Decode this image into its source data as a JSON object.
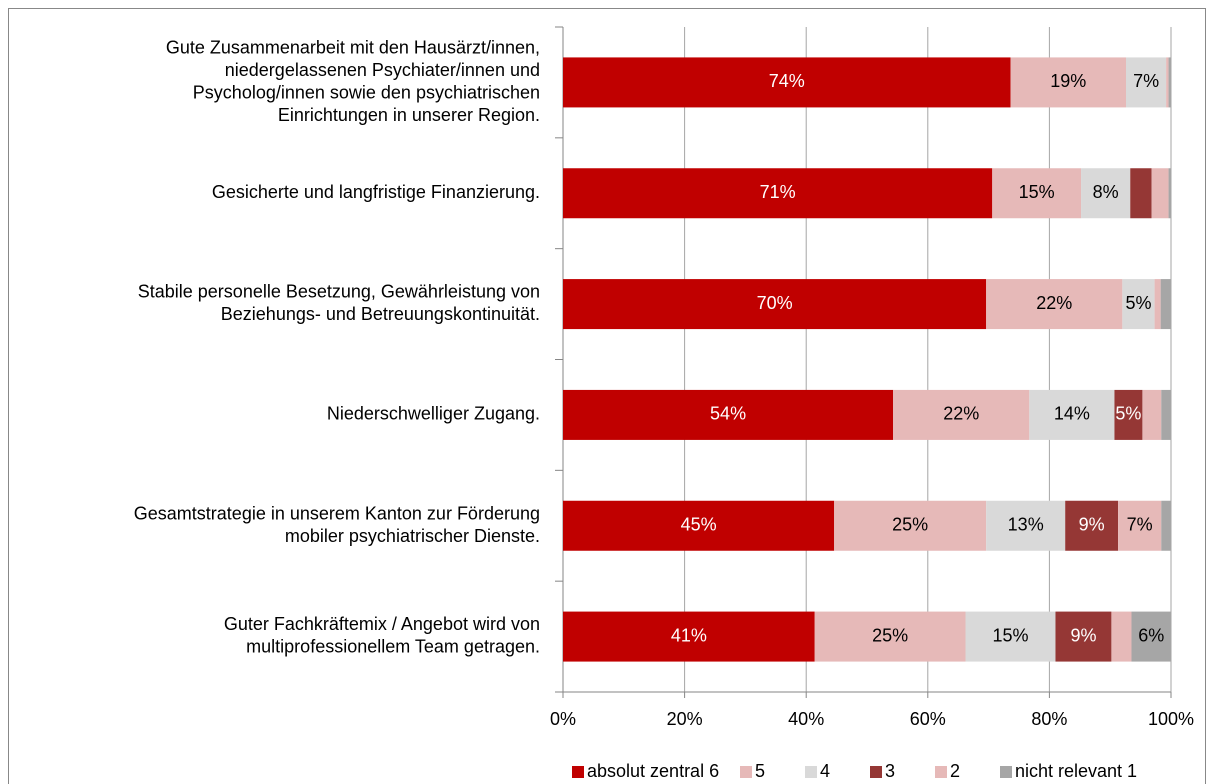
{
  "chart_data": {
    "type": "stacked_bar_horizontal",
    "categories": [
      [
        "Gute Zusammenarbeit mit den Hausärzt/innen,",
        "niedergelassenen Psychiater/innen und",
        "Psycholog/innen sowie den psychiatrischen",
        "Einrichtungen in unserer Region."
      ],
      [
        "Gesicherte und langfristige Finanzierung."
      ],
      [
        "Stabile personelle Besetzung, Gewährleistung von",
        "Beziehungs- und Betreuungskontinuität."
      ],
      [
        "Niederschwelliger Zugang."
      ],
      [
        "Gesamtstrategie in unserem Kanton zur Förderung",
        "mobiler psychiatrischer Dienste."
      ],
      [
        "Guter Fachkräftemix / Angebot wird von",
        "multiprofessionellem Team getragen."
      ]
    ],
    "series": [
      {
        "name": "absolut zentral 6",
        "color": "#c00000",
        "label_color": "#ffffff",
        "values": [
          73.6,
          70.6,
          69.6,
          54.3,
          44.6,
          41.4
        ],
        "value_labels": [
          "74%",
          "71%",
          "70%",
          "54%",
          "45%",
          "41%"
        ]
      },
      {
        "name": "5",
        "color": "#e6b9b8",
        "label_color": "#000000",
        "values": [
          19.0,
          14.6,
          22.4,
          22.4,
          25.0,
          24.8
        ],
        "value_labels": [
          "19%",
          "15%",
          "22%",
          "22%",
          "25%",
          "25%"
        ]
      },
      {
        "name": "4",
        "color": "#d9d9d9",
        "label_color": "#000000",
        "values": [
          6.6,
          8.1,
          5.3,
          14.0,
          13.0,
          14.8
        ],
        "value_labels": [
          "7%",
          "8%",
          "5%",
          "14%",
          "13%",
          "15%"
        ]
      },
      {
        "name": "3",
        "color": "#953735",
        "label_color": "#ffffff",
        "values": [
          0,
          3.5,
          0,
          4.6,
          8.7,
          9.2
        ],
        "value_labels": [
          null,
          null,
          null,
          "5%",
          "9%",
          "9%"
        ]
      },
      {
        "name": "2",
        "color": "#e6b9b8",
        "label_color": "#000000",
        "values": [
          0.4,
          2.8,
          1.0,
          3.1,
          7.1,
          3.3
        ],
        "value_labels": [
          null,
          null,
          null,
          null,
          "7%",
          null
        ]
      },
      {
        "name": "nicht relevant 1",
        "color": "#a6a6a6",
        "label_color": "#000000",
        "values": [
          0.4,
          0.4,
          1.7,
          1.6,
          1.6,
          6.5
        ],
        "value_labels": [
          null,
          null,
          null,
          null,
          null,
          "6%"
        ]
      }
    ],
    "xlim": [
      0,
      100
    ],
    "xticks": [
      {
        "value": 0,
        "label": "0%"
      },
      {
        "value": 20,
        "label": "20%"
      },
      {
        "value": 40,
        "label": "40%"
      },
      {
        "value": 60,
        "label": "60%"
      },
      {
        "value": 80,
        "label": "80%"
      },
      {
        "value": 100,
        "label": "100%"
      }
    ],
    "grid": true,
    "legend": "bottom"
  }
}
